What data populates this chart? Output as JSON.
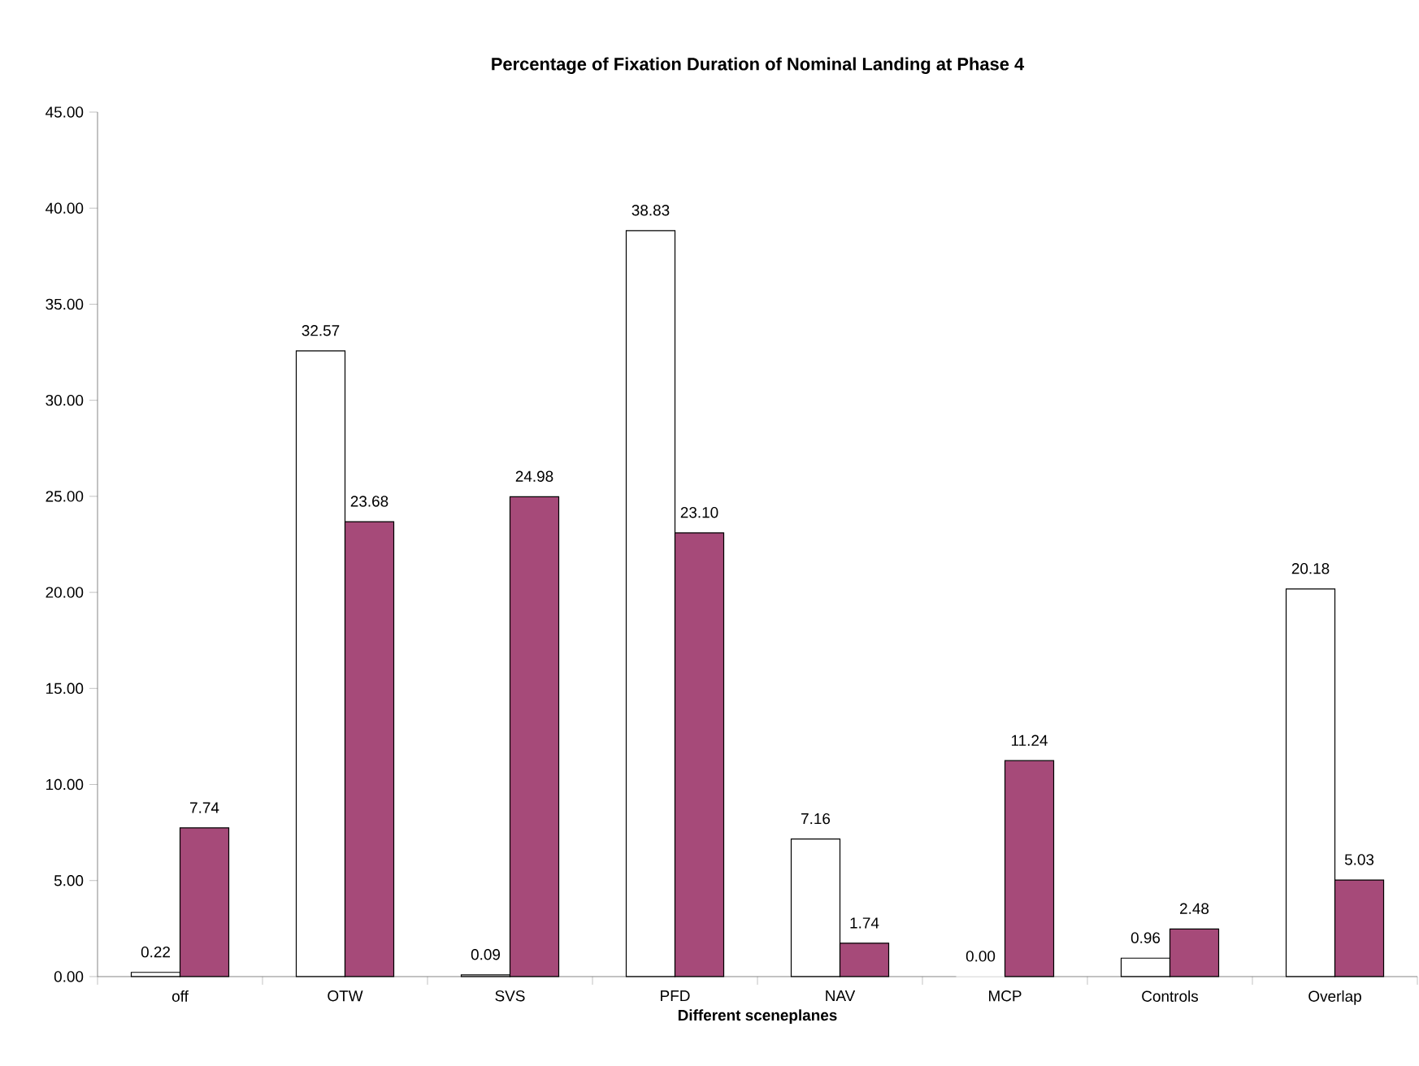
{
  "chart_data": {
    "type": "bar",
    "title": "Percentage of Fixation Duration of Nominal Landing at Phase 4",
    "xlabel": "Different sceneplanes",
    "categories": [
      "off",
      "OTW",
      "SVS",
      "PFD",
      "NAV",
      "MCP",
      "Controls",
      "Overlap"
    ],
    "series": [
      {
        "color": "#ffffff",
        "values": [
          0.22,
          32.57,
          0.09,
          38.83,
          7.16,
          0.0,
          0.96,
          20.18
        ],
        "value_labels": [
          "0.22",
          "32.57",
          "0.09",
          "38.83",
          "7.16",
          "0.00",
          "0.96",
          "20.18"
        ]
      },
      {
        "color": "#a64a79",
        "values": [
          7.74,
          23.68,
          24.98,
          23.1,
          1.74,
          11.24,
          2.48,
          5.03
        ],
        "value_labels": [
          "7.74",
          "23.68",
          "24.98",
          "23.10",
          "1.74",
          "11.24",
          "2.48",
          "5.03"
        ]
      }
    ],
    "ylim": [
      0,
      45
    ],
    "yticks": [
      {
        "value": 0,
        "label": "0.00"
      },
      {
        "value": 5,
        "label": "5.00"
      },
      {
        "value": 10,
        "label": "10.00"
      },
      {
        "value": 15,
        "label": "15.00"
      },
      {
        "value": 20,
        "label": "20.00"
      },
      {
        "value": 25,
        "label": "25.00"
      },
      {
        "value": 30,
        "label": "30.00"
      },
      {
        "value": 35,
        "label": "35.00"
      },
      {
        "value": 40,
        "label": "40.00"
      },
      {
        "value": 45,
        "label": "45.00"
      }
    ],
    "grid": false
  }
}
